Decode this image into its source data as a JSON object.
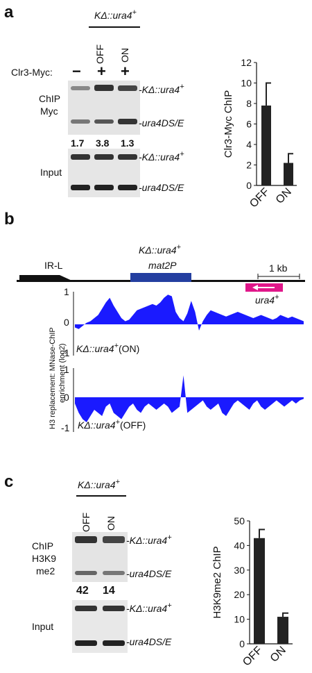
{
  "panel_a": {
    "letter": "a",
    "strain_label": "KΔ::ura4",
    "strain_sup": "+",
    "lane_labels": [
      "OFF",
      "ON"
    ],
    "clr3_label": "Clr3-Myc:",
    "lane_signs": [
      "−",
      "+",
      "+"
    ],
    "chip_label_1": "ChIP",
    "chip_label_2": "Myc",
    "band_top_label": "KΔ::ura4",
    "band_top_sup": "+",
    "band_bottom_label": "ura4DS/E",
    "ratios": [
      "1.7",
      "3.8",
      "1.3"
    ],
    "input_label": "Input",
    "input_band_top": "KΔ::ura4",
    "input_band_top_sup": "+",
    "input_band_bottom": "ura4DS/E"
  },
  "panel_b": {
    "letter": "b",
    "title": "KΔ::ura4",
    "title_sup": "+",
    "irl_label": "IR-L",
    "mat2p_label": "mat2P",
    "scale_label": "1 kb",
    "ura4_label": "ura4",
    "ura4_sup": "+",
    "y_axis_label_1": "H3 replacement: MNase-ChIP",
    "y_axis_label_2": "enrichment (log2)",
    "track_on_label": "KΔ::ura4",
    "track_on_sup": "+",
    "track_on_suffix": "(ON)",
    "track_off_label": "KΔ::ura4",
    "track_off_sup": "+",
    "track_off_suffix": "(OFF)",
    "ticks_on": [
      "1",
      "0",
      "-1"
    ],
    "ticks_off": [
      "1",
      "0",
      "-1"
    ],
    "track_color": "#1a1aff",
    "mat2p_color": "#243fa0",
    "ura4_color": "#e0178a"
  },
  "panel_c": {
    "letter": "c",
    "strain_label": "KΔ::ura4",
    "strain_sup": "+",
    "lane_labels": [
      "OFF",
      "ON"
    ],
    "chip_label_1": "ChIP",
    "chip_label_2": "H3K9",
    "chip_label_3": "me2",
    "band_top_label": "KΔ::ura4",
    "band_top_sup": "+",
    "band_bottom_label": "ura4DS/E",
    "ratios": [
      "42",
      "14"
    ],
    "input_label": "Input",
    "input_band_top": "KΔ::ura4",
    "input_band_top_sup": "+",
    "input_band_bottom": "ura4DS/E"
  },
  "chart_data": [
    {
      "type": "bar",
      "categories": [
        "OFF",
        "ON"
      ],
      "values": [
        7.8,
        2.2
      ],
      "errors": [
        2.2,
        0.9
      ],
      "ylabel": "Clr3-Myc ChIP",
      "ylim": [
        0,
        12
      ],
      "yticks": [
        "0",
        "2",
        "4",
        "6",
        "8",
        "10",
        "12"
      ],
      "bar_color": "#222222"
    },
    {
      "type": "bar",
      "categories": [
        "OFF",
        "ON"
      ],
      "values": [
        43,
        11
      ],
      "errors": [
        3.5,
        1.5
      ],
      "ylabel": "H3K9me2 ChIP",
      "ylim": [
        0,
        50
      ],
      "yticks": [
        "0",
        "10",
        "20",
        "30",
        "40",
        "50"
      ],
      "bar_color": "#222222"
    }
  ]
}
